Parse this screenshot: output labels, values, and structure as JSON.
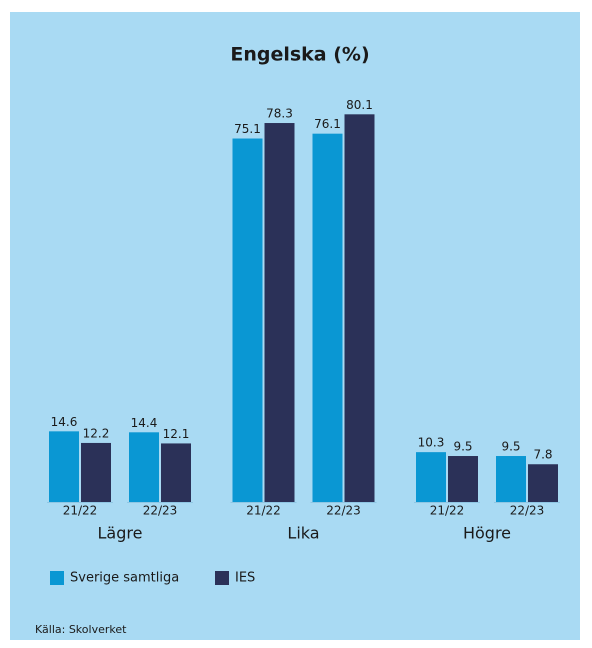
{
  "chart_data": {
    "type": "bar",
    "title": "Engelska (%)",
    "groups": [
      "Lägre",
      "Lika",
      "Högre"
    ],
    "categories": [
      "21/22",
      "22/23",
      "21/22",
      "22/23",
      "21/22",
      "22/23"
    ],
    "series": [
      {
        "name": "Sverige samtliga",
        "color": "#0a97d3",
        "values": [
          14.6,
          14.4,
          75.1,
          76.1,
          10.3,
          9.5
        ]
      },
      {
        "name": "IES",
        "color": "#2b3158",
        "values": [
          12.2,
          12.1,
          78.3,
          80.1,
          9.5,
          7.8
        ]
      }
    ],
    "source": "Källa: Skolverket"
  }
}
